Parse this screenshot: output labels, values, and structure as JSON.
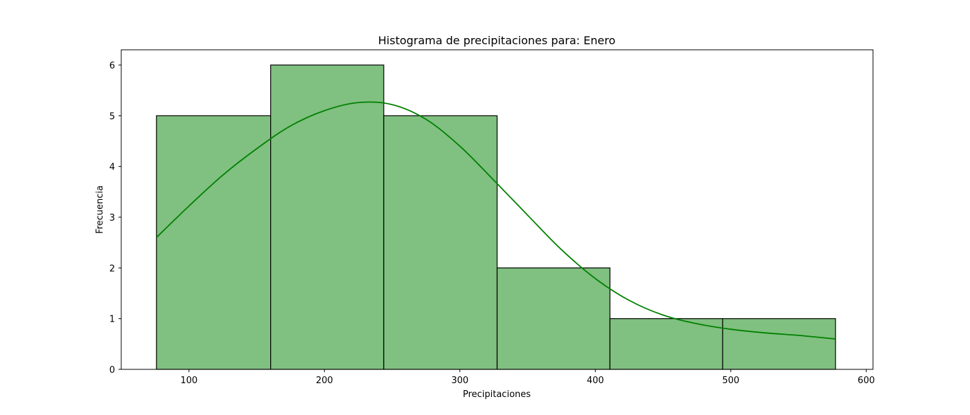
{
  "chart_data": {
    "type": "bar",
    "title": "Histograma de precipitaciones para: Enero",
    "xlabel": "Precipitaciones",
    "ylabel": "Frecuencia",
    "xlim": [
      50,
      605
    ],
    "ylim": [
      0,
      6.3
    ],
    "xticks": [
      100,
      200,
      300,
      400,
      500,
      600
    ],
    "yticks": [
      0,
      1,
      2,
      3,
      4,
      5,
      6
    ],
    "bins": [
      {
        "start": 76.0,
        "end": 160.3,
        "value": 5
      },
      {
        "start": 160.3,
        "end": 243.8,
        "value": 6
      },
      {
        "start": 243.8,
        "end": 327.5,
        "value": 5
      },
      {
        "start": 327.5,
        "end": 410.8,
        "value": 2
      },
      {
        "start": 410.8,
        "end": 494.0,
        "value": 1
      },
      {
        "start": 494.0,
        "end": 577.3,
        "value": 1
      }
    ],
    "kde": {
      "x": [
        76,
        100,
        125,
        150,
        175,
        200,
        225,
        250,
        275,
        300,
        325,
        350,
        375,
        400,
        425,
        450,
        475,
        500,
        525,
        550,
        577
      ],
      "y": [
        2.6,
        3.22,
        3.83,
        4.35,
        4.8,
        5.1,
        5.26,
        5.22,
        4.93,
        4.4,
        3.73,
        3.04,
        2.36,
        1.79,
        1.36,
        1.07,
        0.9,
        0.79,
        0.72,
        0.67,
        0.6
      ]
    },
    "grid": false,
    "colors": {
      "bar_fill": "#80c080",
      "bar_edge": "#000000",
      "kde_line": "#008000"
    }
  }
}
